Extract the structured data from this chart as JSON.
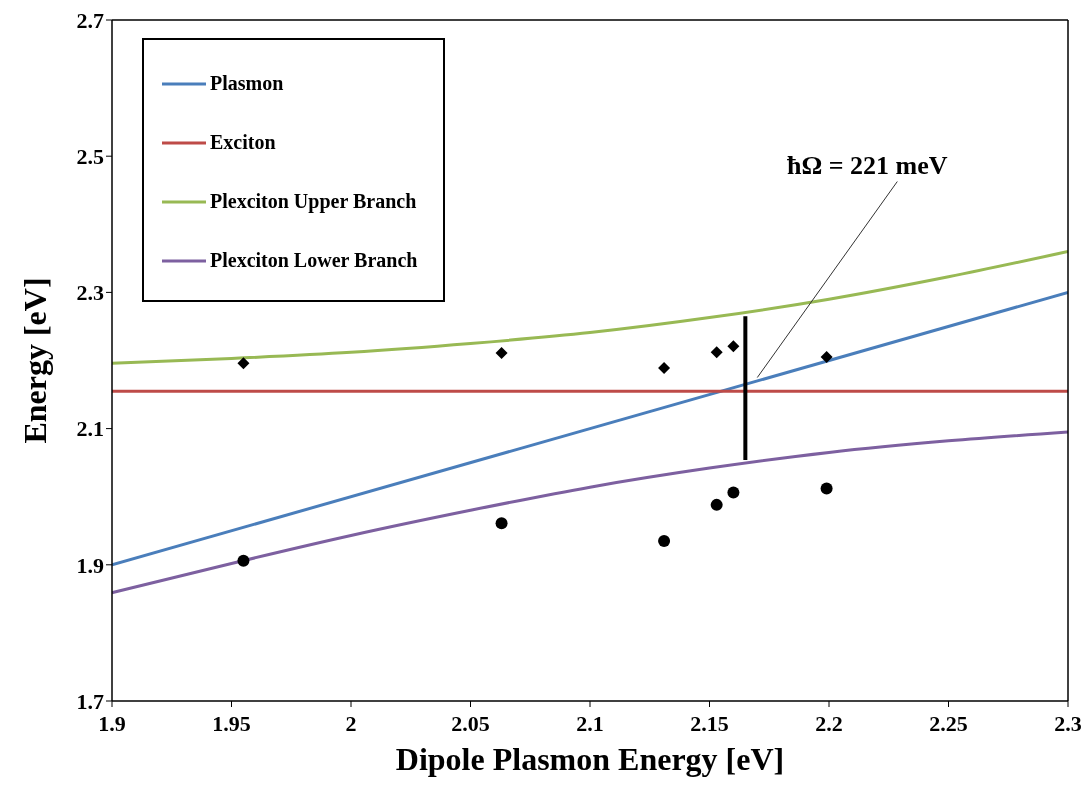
{
  "chart_data": {
    "type": "line",
    "xlabel": "Dipole Plasmon Energy [eV]",
    "ylabel": "Energy [eV]",
    "xlim": [
      1.9,
      2.3
    ],
    "xticks": [
      1.9,
      1.95,
      2,
      2.05,
      2.1,
      2.15,
      2.2,
      2.25,
      2.3
    ],
    "ylim": [
      1.7,
      2.7
    ],
    "yticks": [
      1.7,
      1.9,
      2.1,
      2.3,
      2.5,
      2.7
    ],
    "grid": false,
    "legend": "top left",
    "line_style": "solid",
    "marker": "none",
    "annotations": [
      {
        "text": "ħΩ = 221 meV",
        "x": 2.17,
        "y": 2.175
      }
    ],
    "series": [
      {
        "name": "Plasmon",
        "color": "#4a7ebb",
        "x": [
          1.9,
          2.3
        ],
        "values": [
          1.9,
          2.3
        ]
      },
      {
        "name": "Exciton",
        "color": "#be4b48",
        "x": [
          1.9,
          2.3
        ],
        "values": [
          2.155,
          2.155
        ]
      },
      {
        "name": "Plexciton Upper Branch",
        "color": "#98b954",
        "x": [
          1.9,
          1.95,
          2,
          2.05,
          2.1,
          2.15,
          2.2,
          2.25,
          2.3
        ],
        "values": [
          2.196,
          2.203,
          2.212,
          2.225,
          2.241,
          2.263,
          2.29,
          2.323,
          2.36
        ]
      },
      {
        "name": "Plexciton Lower Branch",
        "color": "#7d60a0",
        "x": [
          1.9,
          1.95,
          2,
          2.05,
          2.1,
          2.15,
          2.2,
          2.25,
          2.3
        ],
        "values": [
          1.859,
          1.902,
          1.943,
          1.98,
          2.014,
          2.042,
          2.065,
          2.082,
          2.095
        ]
      },
      {
        "type": "scatter",
        "marker": "diamond",
        "color": "#000000",
        "x": [
          1.955,
          2.063,
          2.131,
          2.153,
          2.16,
          2.199
        ],
        "values": [
          2.196,
          2.211,
          2.189,
          2.212,
          2.221,
          2.205
        ]
      },
      {
        "type": "scatter",
        "marker": "circle",
        "color": "#000000",
        "x": [
          1.955,
          2.063,
          2.131,
          2.153,
          2.16,
          2.199
        ],
        "values": [
          1.906,
          1.961,
          1.935,
          1.988,
          2.006,
          2.012
        ]
      },
      {
        "type": "line",
        "color": "#000000",
        "x": [
          2.165,
          2.165
        ],
        "values": [
          2.265,
          2.054
        ]
      }
    ]
  }
}
